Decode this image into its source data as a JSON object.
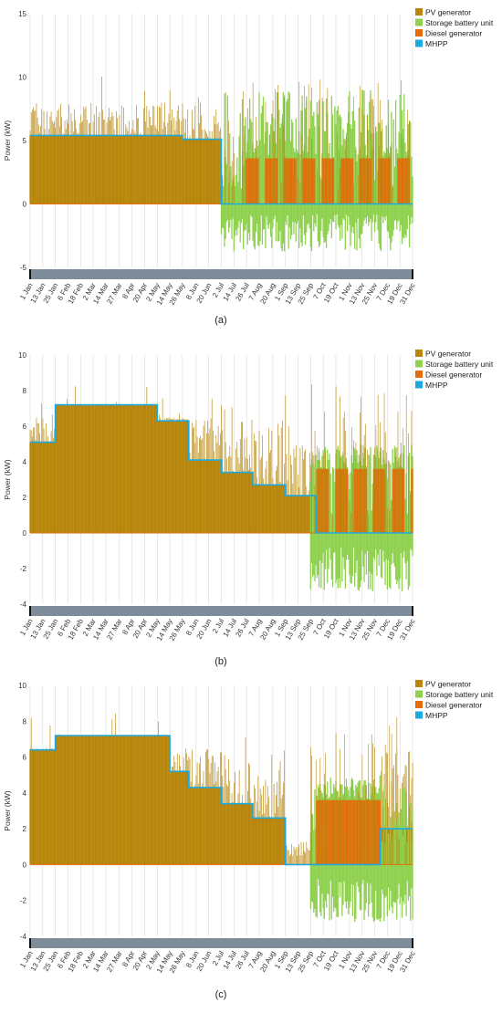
{
  "legend": [
    {
      "name": "PV generator",
      "color": "#B8860B"
    },
    {
      "name": "Storage battery unit",
      "color": "#8FD14F"
    },
    {
      "name": "Diesel generator",
      "color": "#E46C0A"
    },
    {
      "name": "MHPP",
      "color": "#1CA9E0"
    }
  ],
  "x_ticks": [
    "1 Jan",
    "13 Jan",
    "25 Jan",
    "6 Feb",
    "18 Feb",
    "2 Mar",
    "14 Mar",
    "27 Mar",
    "8 Apr",
    "20 Apr",
    "2 May",
    "14 May",
    "26 May",
    "8 Jun",
    "20 Jun",
    "2 Jul",
    "14 Jul",
    "26 Jul",
    "7 Aug",
    "20 Aug",
    "1 Sep",
    "13 Sep",
    "25 Sep",
    "7 Oct",
    "19 Oct",
    "1 Nov",
    "13 Nov",
    "25 Nov",
    "7 Dec",
    "19 Dec",
    "31 Dec"
  ],
  "colors": {
    "grid": "#d9d9d9",
    "slider": "#7f8c99",
    "axis_zero": "#E46C0A"
  },
  "chart_data": [
    {
      "type": "area",
      "caption": "(a)",
      "ylabel": "Power (kW)",
      "ylim": [
        -5,
        15
      ],
      "yticks": [
        -5,
        0,
        5,
        10,
        15
      ],
      "x_range": [
        "1 Jan",
        "31 Dec"
      ],
      "grid": "vertical",
      "legend_position": "top-right",
      "series": [
        {
          "name": "PV generator",
          "envelope_kw": {
            "typical_peak": 8,
            "max": 10.2
          },
          "active": "all year"
        },
        {
          "name": "Storage battery unit",
          "range_kw": [
            -3.8,
            9
          ],
          "active": "2 Jul - 31 Dec"
        },
        {
          "name": "Diesel generator",
          "level_kw": 3.6,
          "active": "intermittent, 26 Jul - 31 Dec"
        },
        {
          "name": "MHPP",
          "steps": [
            {
              "from": "1 Jan",
              "to": "26 May",
              "kw": 5.4
            },
            {
              "from": "26 May",
              "to": "2 Jul",
              "kw": 5.1
            },
            {
              "from": "2 Jul",
              "to": "31 Dec",
              "kw": 0
            }
          ]
        }
      ]
    },
    {
      "type": "area",
      "caption": "(b)",
      "ylabel": "Power (kW)",
      "ylim": [
        -4,
        10
      ],
      "yticks": [
        -4,
        -2,
        0,
        2,
        4,
        6,
        8,
        10
      ],
      "x_range": [
        "1 Jan",
        "31 Dec"
      ],
      "grid": "vertical",
      "legend_position": "top-right",
      "series": [
        {
          "name": "PV generator",
          "envelope_kw": {
            "typical_peak": 6.5,
            "max": 8.4
          },
          "active": "all year"
        },
        {
          "name": "Storage battery unit",
          "range_kw": [
            -3.3,
            5
          ],
          "active": "25 Sep - 31 Dec"
        },
        {
          "name": "Diesel generator",
          "level_kw": 3.6,
          "active": "intermittent, 1 Oct - 31 Dec"
        },
        {
          "name": "MHPP",
          "steps": [
            {
              "from": "1 Jan",
              "to": "25 Jan",
              "kw": 5.1
            },
            {
              "from": "25 Jan",
              "to": "2 May",
              "kw": 7.2
            },
            {
              "from": "2 May",
              "to": "1 Jun",
              "kw": 6.3
            },
            {
              "from": "1 Jun",
              "to": "2 Jul",
              "kw": 4.1
            },
            {
              "from": "2 Jul",
              "to": "1 Aug",
              "kw": 3.4
            },
            {
              "from": "1 Aug",
              "to": "1 Sep",
              "kw": 2.7
            },
            {
              "from": "1 Sep",
              "to": "30 Sep",
              "kw": 2.1
            },
            {
              "from": "30 Sep",
              "to": "31 Dec",
              "kw": 0
            }
          ]
        }
      ]
    },
    {
      "type": "area",
      "caption": "(c)",
      "ylabel": "Power (kW)",
      "ylim": [
        -4,
        10
      ],
      "yticks": [
        -4,
        -2,
        0,
        2,
        4,
        6,
        8,
        10
      ],
      "x_range": [
        "1 Jan",
        "31 Dec"
      ],
      "grid": "vertical",
      "legend_position": "top-right",
      "series": [
        {
          "name": "PV generator",
          "envelope_kw": {
            "typical_peak": 6.5,
            "max": 8.4
          },
          "active": "all year"
        },
        {
          "name": "Storage battery unit",
          "range_kw": [
            -3.2,
            5
          ],
          "active": "25 Sep - 31 Dec"
        },
        {
          "name": "Diesel generator",
          "level_kw": 3.6,
          "active": "1 Oct - 30 Nov"
        },
        {
          "name": "MHPP",
          "steps": [
            {
              "from": "1 Jan",
              "to": "25 Jan",
              "kw": 6.4
            },
            {
              "from": "25 Jan",
              "to": "14 May",
              "kw": 7.2
            },
            {
              "from": "14 May",
              "to": "1 Jun",
              "kw": 5.2
            },
            {
              "from": "1 Jun",
              "to": "2 Jul",
              "kw": 4.3
            },
            {
              "from": "2 Jul",
              "to": "1 Aug",
              "kw": 3.4
            },
            {
              "from": "1 Aug",
              "to": "1 Sep",
              "kw": 2.6
            },
            {
              "from": "1 Sep",
              "to": "30 Sep",
              "kw": 0
            },
            {
              "from": "30 Sep",
              "to": "30 Nov",
              "kw": 0
            },
            {
              "from": "30 Nov",
              "to": "31 Dec",
              "kw": 2.0
            }
          ]
        }
      ]
    }
  ]
}
